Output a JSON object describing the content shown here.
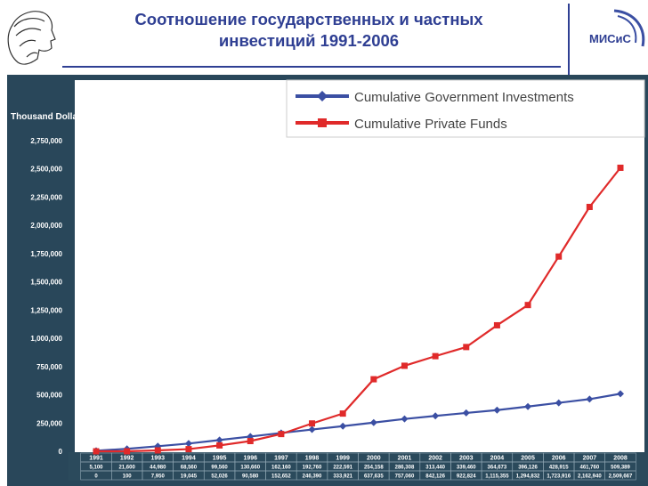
{
  "slide": {
    "title_line1": "Соотношение государственных и частных",
    "title_line2": "инвестиций 1991-2006",
    "logo_text": "МИСиС"
  },
  "colors": {
    "title": "#2f3f93",
    "government": "#3b4fa3",
    "private": "#e02a2a",
    "table_bg": "#2b4a5c",
    "panel_bg": "#29475a"
  },
  "icons": {
    "left_logo": "profile-head-icon",
    "right_logo": "misis-logo-icon"
  },
  "chart_data": {
    "type": "line",
    "ylabel": "Thousand Dollars",
    "xlabel": "",
    "ylim": [
      0,
      2750000
    ],
    "yticks": [
      0,
      250000,
      500000,
      750000,
      1000000,
      1250000,
      1500000,
      1750000,
      2000000,
      2250000,
      2500000,
      2750000
    ],
    "ytick_labels": [
      "0",
      "250,000",
      "500,000",
      "750,000",
      "1,000,000",
      "1,250,000",
      "1,500,000",
      "1,750,000",
      "2,000,000",
      "2,250,000",
      "2,500,000",
      "2,750,000"
    ],
    "grid": false,
    "legend_position": "top-right",
    "categories": [
      "1991",
      "1992",
      "1993",
      "1994",
      "1995",
      "1996",
      "1997",
      "1998",
      "1999",
      "2000",
      "2001",
      "2002",
      "2003",
      "2004",
      "2005",
      "2006",
      "2007",
      "2008"
    ],
    "series": [
      {
        "name": "Cumulative Government Investments",
        "color": "#3b4fa3",
        "marker": "diamond",
        "values": [
          5100,
          21600,
          44980,
          68560,
          99560,
          130660,
          162160,
          192760,
          222591,
          254158,
          286308,
          313440,
          339460,
          364673,
          396126,
          428915,
          461760,
          509389
        ],
        "table_labels": [
          "5,100",
          "21,600",
          "44,980",
          "68,560",
          "99,560",
          "130,660",
          "162,160",
          "192,760",
          "222,591",
          "254,158",
          "286,308",
          "313,440",
          "339,460",
          "364,673",
          "396,126",
          "428,915",
          "461,760",
          "509,389"
        ]
      },
      {
        "name": "Cumulative Private Funds",
        "color": "#e02a2a",
        "marker": "square",
        "values": [
          0,
          100,
          7950,
          19045,
          52026,
          90580,
          152652,
          246390,
          333921,
          637635,
          757060,
          842126,
          922824,
          1115355,
          1294832,
          1723916,
          2162940,
          2509667
        ],
        "table_labels": [
          "0",
          "100",
          "7,950",
          "19,045",
          "52,026",
          "90,580",
          "152,652",
          "246,390",
          "333,921",
          "637,635",
          "757,060",
          "842,126",
          "922,824",
          "1,115,355",
          "1,294,832",
          "1,723,916",
          "2,162,940",
          "2,509,667"
        ]
      }
    ]
  }
}
